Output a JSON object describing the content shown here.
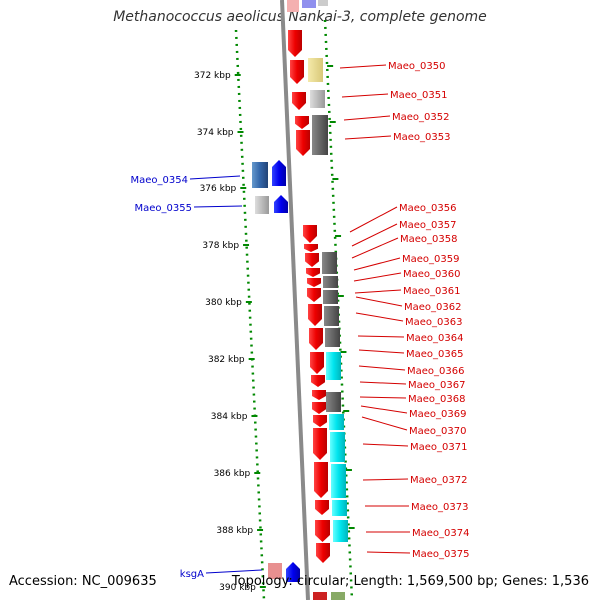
{
  "title": "Methanococcus aeolicus Nankai-3, complete genome",
  "accession": "Accession: NC_009635",
  "topology": "Topology: circular; Length: 1,569,500 bp; Genes: 1,536",
  "kbp_ticks": [
    {
      "label": "372 kbp",
      "kbp": 372
    },
    {
      "label": "374 kbp",
      "kbp": 374
    },
    {
      "label": "376 kbp",
      "kbp": 376
    },
    {
      "label": "378 kbp",
      "kbp": 378
    },
    {
      "label": "380 kbp",
      "kbp": 380
    },
    {
      "label": "382 kbp",
      "kbp": 382
    },
    {
      "label": "384 kbp",
      "kbp": 384
    },
    {
      "label": "386 kbp",
      "kbp": 386
    },
    {
      "label": "388 kbp",
      "kbp": 388
    },
    {
      "label": "390 kbp",
      "kbp": 390
    }
  ],
  "right_genes": [
    "Maeo_0350",
    "Maeo_0351",
    "Maeo_0352",
    "Maeo_0353",
    "Maeo_0356",
    "Maeo_0357",
    "Maeo_0358",
    "Maeo_0359",
    "Maeo_0360",
    "Maeo_0361",
    "Maeo_0362",
    "Maeo_0363",
    "Maeo_0364",
    "Maeo_0365",
    "Maeo_0366",
    "Maeo_0367",
    "Maeo_0368",
    "Maeo_0369",
    "Maeo_0370",
    "Maeo_0371",
    "Maeo_0372",
    "Maeo_0373",
    "Maeo_0374",
    "Maeo_0375"
  ],
  "left_genes": [
    "Maeo_0354",
    "Maeo_0355",
    "ksgA"
  ],
  "colors": {
    "forward_strand": "#ff0000",
    "reverse_strand": "#0000ff",
    "cog_gray": "#666666",
    "cog_cyan": "#00e5ee",
    "cog_yellow": "#eedd88",
    "tick_green": "#008800",
    "label_red": "#d40000",
    "label_blue": "#0000cc"
  }
}
